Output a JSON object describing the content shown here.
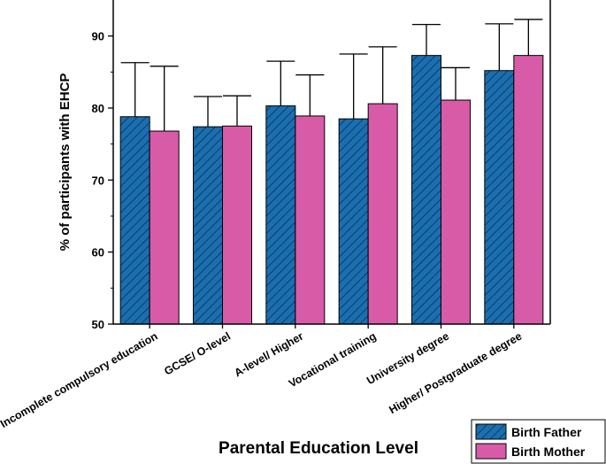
{
  "chart_data": {
    "type": "bar",
    "title": "",
    "xlabel": "Parental Education Level",
    "ylabel": "% of participants with EHCP",
    "ylim": [
      50,
      95
    ],
    "yticks": [
      50,
      60,
      70,
      80,
      90
    ],
    "grid": false,
    "legend_position": "bottom-right",
    "categories": [
      "Incomplete compulsory education",
      "GCSE/ O-level",
      "A-level/ Higher",
      "Vocational training",
      "University degree",
      "Higher/ Postgraduate degree"
    ],
    "series": [
      {
        "name": "Birth Father",
        "color": "#1a6fb0",
        "pattern": "diagonal-hatch",
        "values": [
          78.8,
          77.4,
          80.3,
          78.5,
          87.3,
          85.2
        ],
        "error_upper": [
          86.3,
          81.6,
          86.5,
          87.5,
          91.6,
          91.7
        ]
      },
      {
        "name": "Birth Mother",
        "color": "#d85ba8",
        "pattern": "solid",
        "values": [
          76.8,
          77.5,
          78.9,
          80.6,
          81.1,
          87.3
        ],
        "error_upper": [
          85.8,
          81.7,
          84.6,
          88.5,
          85.6,
          92.3
        ]
      }
    ]
  }
}
